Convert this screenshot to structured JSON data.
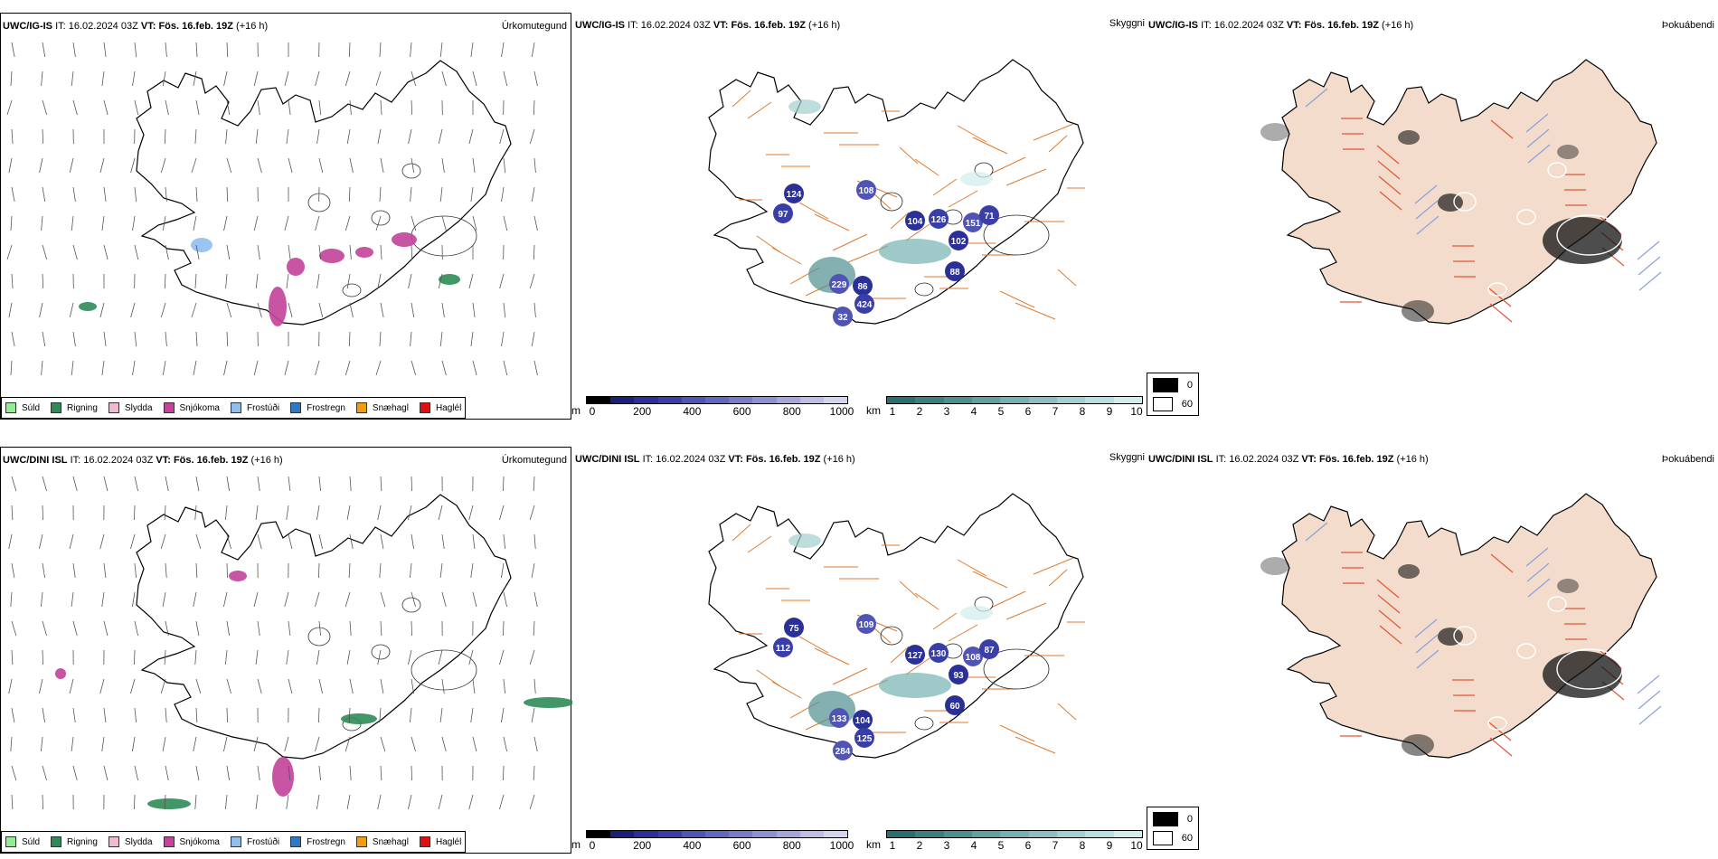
{
  "rows": [
    {
      "id": "uwc-ig-is",
      "header": {
        "model": "UWC/IG-IS",
        "it_label": "IT:",
        "it_value": "16.02.2024 03Z",
        "vt_label": "VT:",
        "vt_value": "Fös. 16.feb. 19Z",
        "lead": "(+16 h)"
      },
      "precip_title": "Úrkomutegund",
      "vis_title": "Skyggni",
      "fog_title": "Þokuábendi",
      "cloud_labels": [
        "124",
        "97",
        "108",
        "104",
        "126",
        "151",
        "102",
        "71",
        "229",
        "86",
        "424",
        "32",
        "88"
      ]
    },
    {
      "id": "uwc-dini-isl",
      "header": {
        "model": "UWC/DINI ISL",
        "it_label": "IT:",
        "it_value": "16.02.2024 03Z",
        "vt_label": "VT:",
        "vt_value": "Fös. 16.feb. 19Z",
        "lead": "(+16 h)"
      },
      "precip_title": "Úrkomutegund",
      "vis_title": "Skyggni",
      "fog_title": "Þokuábendi",
      "cloud_labels": [
        "75",
        "112",
        "109",
        "127",
        "130",
        "108",
        "93",
        "87",
        "133",
        "104",
        "125",
        "284",
        "60"
      ]
    }
  ],
  "precip_legend": [
    {
      "label": "Súld",
      "color": "#90ee90"
    },
    {
      "label": "Rigning",
      "color": "#2e8b57"
    },
    {
      "label": "Slydda",
      "color": "#f4b6d2"
    },
    {
      "label": "Snjókoma",
      "color": "#c1439a"
    },
    {
      "label": "Frostúði",
      "color": "#8fbfee"
    },
    {
      "label": "Frostregn",
      "color": "#2f78c4"
    },
    {
      "label": "Snæhagl",
      "color": "#f39c12"
    },
    {
      "label": "Haglél",
      "color": "#e01010"
    }
  ],
  "cloud_base_scale": {
    "unit": "m",
    "ticks": [
      "0",
      "200",
      "400",
      "600",
      "800",
      "1000"
    ],
    "colors": [
      "#000000",
      "#1a1f7a",
      "#2b3096",
      "#3a3fa8",
      "#5055b3",
      "#6467be",
      "#797bc8",
      "#8e90d2",
      "#a5a6dc",
      "#bdbee6",
      "#d3d4ef"
    ]
  },
  "visibility_scale": {
    "unit": "km",
    "ticks": [
      "1",
      "2",
      "3",
      "4",
      "5",
      "6",
      "7",
      "8",
      "9",
      "10"
    ],
    "colors": [
      "#2a6f6f",
      "#3d7f7f",
      "#4f8f8f",
      "#62a0a0",
      "#76b0b0",
      "#8cc0c0",
      "#a2cfcf",
      "#b9dede",
      "#d2ecec"
    ]
  },
  "fog_legend": [
    {
      "label": "0",
      "color": "#000000"
    },
    {
      "label": "60",
      "color": "#ffffff"
    }
  ],
  "colors": {
    "coast": "#000000",
    "roads": "#e07a2f",
    "fog_land": "#f3dccb",
    "fog_roads": "#e2553a",
    "fog_rivers": "#8c9fe0",
    "wind": "#555555"
  }
}
